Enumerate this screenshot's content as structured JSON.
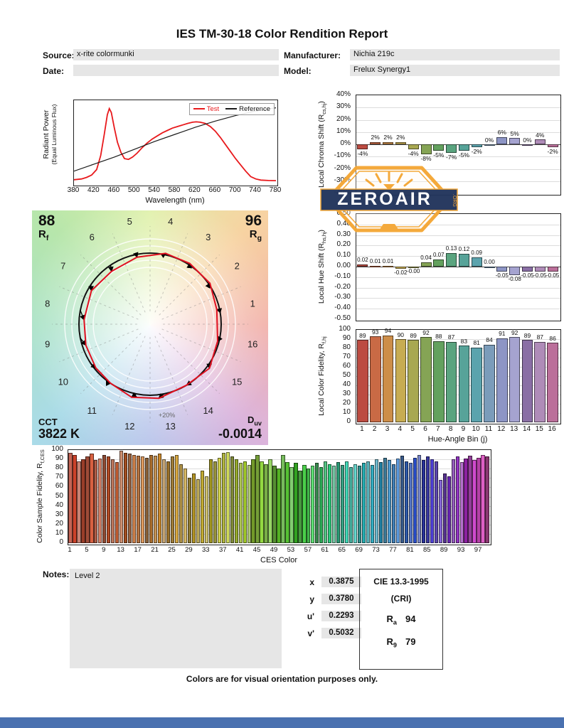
{
  "theme": {
    "accent_orange": "#f4a735",
    "watermark_navy": "#23355c",
    "footer_bar_blue": "#4a71b0",
    "field_bg": "#e6e6e6",
    "test_red": "#e8191c",
    "reference_black": "#1a1a1a"
  },
  "report": {
    "title": "IES TM-30-18 Color Rendition Report",
    "fields": {
      "source_label": "Source:",
      "source_value": "x-rite colormunki",
      "manufacturer_label": "Manufacturer:",
      "manufacturer_value": "Nichia 219c",
      "date_label": "Date:",
      "date_value": "",
      "model_label": "Model:",
      "model_value": "Frelux Synergy1"
    },
    "footer": "Colors are for visual orientation purposes only.",
    "watermark": {
      "name": "ZEROAIR",
      "suffix": ".ORG"
    }
  },
  "summary": {
    "rf_value": "88",
    "rf_main": "R",
    "rf_sub": "f",
    "rg_value": "96",
    "rg_main": "R",
    "rg_sub": "g",
    "cct_label": "CCT",
    "cct_value": "3822 K",
    "duv_main": "D",
    "duv_sub": "uv",
    "duv_value": "-0.0014"
  },
  "cvg": {
    "ring_label": "+20%"
  },
  "notes": {
    "label": "Notes:",
    "content": "Level 2"
  },
  "chromaticity": {
    "rows": [
      {
        "label": "x",
        "value": "0.3875"
      },
      {
        "label": "y",
        "value": "0.3780"
      },
      {
        "label": "u'",
        "value": "0.2293"
      },
      {
        "label": "v'",
        "value": "0.5032"
      }
    ]
  },
  "cri_box": {
    "title": "CIE 13.3-1995",
    "subtitle": "(CRI)",
    "rows": [
      {
        "main": "R",
        "sub": "a",
        "value": "94"
      },
      {
        "main": "R",
        "sub": "9",
        "value": "79"
      }
    ]
  },
  "hue_bin_colors": [
    "#bc4b41",
    "#c96a45",
    "#cd8e49",
    "#c7ac52",
    "#a8a851",
    "#85a455",
    "#63a15e",
    "#5aa47f",
    "#57a399",
    "#5ba3ad",
    "#7b9cba",
    "#8d95c5",
    "#a5a3d0",
    "#8a6fa5",
    "#af8cb8",
    "#bb6f9a"
  ],
  "chart_data": [
    {
      "id": "spd",
      "type": "line",
      "xlabel": "Wavelength (nm)",
      "ylabel_line1": "Radiant Power",
      "ylabel_line2": "(Equal Luminous Flux)",
      "xlim": [
        380,
        780
      ],
      "xticks": [
        "380",
        "420",
        "460",
        "500",
        "540",
        "580",
        "620",
        "660",
        "700",
        "740",
        "780"
      ],
      "legend": [
        {
          "label": "Test",
          "color": "#e8191c"
        },
        {
          "label": "Reference",
          "color": "#1a1a1a"
        }
      ],
      "series": [
        {
          "name": "Test",
          "color": "#e8191c",
          "x": [
            380,
            395,
            405,
            415,
            425,
            433,
            440,
            446,
            450,
            454,
            460,
            466,
            473,
            480,
            488,
            496,
            505,
            515,
            525,
            535,
            545,
            555,
            565,
            575,
            585,
            595,
            605,
            615,
            622,
            630,
            640,
            650,
            660,
            670,
            680,
            690,
            700,
            710,
            720,
            730,
            740,
            750,
            765,
            780
          ],
          "y": [
            0.02,
            0.03,
            0.05,
            0.08,
            0.15,
            0.33,
            0.6,
            0.85,
            0.93,
            0.88,
            0.68,
            0.5,
            0.37,
            0.29,
            0.28,
            0.31,
            0.36,
            0.43,
            0.49,
            0.54,
            0.58,
            0.62,
            0.65,
            0.68,
            0.7,
            0.72,
            0.74,
            0.755,
            0.76,
            0.755,
            0.74,
            0.7,
            0.64,
            0.56,
            0.47,
            0.38,
            0.29,
            0.21,
            0.13,
            0.06,
            0.03,
            0.015,
            0.01,
            0.008
          ]
        },
        {
          "name": "Reference",
          "color": "#1a1a1a",
          "x": [
            380,
            420,
            460,
            500,
            540,
            580,
            620,
            660,
            700,
            740,
            780
          ],
          "y": [
            0.13,
            0.22,
            0.31,
            0.41,
            0.51,
            0.6,
            0.69,
            0.77,
            0.84,
            0.9,
            0.94
          ]
        }
      ]
    },
    {
      "id": "chroma_shift",
      "type": "bar",
      "ylabel_prefix": "Local Chroma Shift (R",
      "ylabel_sub": "cs,hj",
      "ylabel_suffix": ")",
      "ylim": [
        -40,
        40
      ],
      "yticks": [
        "40%",
        "30%",
        "20%",
        "10%",
        "0%",
        "-10%",
        "-20%",
        "-30%",
        "-40%"
      ],
      "categories": [
        "1",
        "2",
        "3",
        "4",
        "5",
        "6",
        "7",
        "8",
        "9",
        "10",
        "11",
        "12",
        "13",
        "14",
        "15",
        "16"
      ],
      "values": [
        -4,
        2,
        2,
        2,
        -4,
        -8,
        -5,
        -7,
        -5,
        -2,
        0,
        6,
        5,
        0,
        4,
        -2
      ],
      "labels": [
        "-4%",
        "2%",
        "2%",
        "2%",
        "-4%",
        "-8%",
        "-5%",
        "-7%",
        "-5%",
        "-2%",
        "0%",
        "6%",
        "5%",
        "0%",
        "4%",
        "-2%"
      ]
    },
    {
      "id": "hue_shift",
      "type": "bar",
      "ylabel_prefix": "Local Hue Shift (R",
      "ylabel_sub": "hs,hj",
      "ylabel_suffix": ")",
      "ylim": [
        -0.5,
        0.5
      ],
      "yticks": [
        "0.50",
        "0.40",
        "0.30",
        "0.20",
        "0.10",
        "0.00",
        "-0.10",
        "-0.20",
        "-0.30",
        "-0.40",
        "-0.50"
      ],
      "categories": [
        "1",
        "2",
        "3",
        "4",
        "5",
        "6",
        "7",
        "8",
        "9",
        "10",
        "11",
        "12",
        "13",
        "14",
        "15",
        "16"
      ],
      "values": [
        0.02,
        0.01,
        0.01,
        -0.02,
        -0.005,
        0.04,
        0.07,
        0.13,
        0.12,
        0.09,
        0.0,
        -0.05,
        -0.08,
        -0.05,
        -0.05,
        -0.05
      ],
      "labels": [
        "0.02",
        "0.01",
        "0.01",
        "-0.02",
        "-0.00",
        "0.04",
        "0.07",
        "0.13",
        "0.12",
        "0.09",
        "0.00",
        "-0.05",
        "-0.08",
        "-0.05",
        "-0.05",
        "-0.05"
      ]
    },
    {
      "id": "local_fidelity",
      "type": "bar",
      "ylabel_prefix": "Local Color Fidelity, R",
      "ylabel_sub": "f,hj",
      "ylabel_suffix": "",
      "xlabel": "Hue-Angle Bin (j)",
      "ylim": [
        0,
        100
      ],
      "yticks": [
        "100",
        "90",
        "80",
        "70",
        "60",
        "50",
        "40",
        "30",
        "20",
        "10",
        "0"
      ],
      "categories": [
        "1",
        "2",
        "3",
        "4",
        "5",
        "6",
        "7",
        "8",
        "9",
        "10",
        "11",
        "12",
        "13",
        "14",
        "15",
        "16"
      ],
      "values": [
        89,
        93,
        94,
        90,
        89,
        92,
        88,
        87,
        83,
        81,
        84,
        91,
        92,
        89,
        87,
        86
      ]
    },
    {
      "id": "ces_fidelity",
      "type": "bar",
      "ylabel_prefix": "Color Sample Fidelity, R",
      "ylabel_sub": "f,CES",
      "ylabel_suffix": "",
      "xlabel": "CES Color",
      "ylim": [
        0,
        100
      ],
      "yticks": [
        "100",
        "90",
        "80",
        "70",
        "60",
        "50",
        "40",
        "30",
        "20",
        "10",
        "0"
      ],
      "xticks": [
        "1",
        "5",
        "9",
        "13",
        "17",
        "21",
        "25",
        "29",
        "33",
        "37",
        "41",
        "45",
        "49",
        "53",
        "57",
        "61",
        "65",
        "69",
        "73",
        "77",
        "81",
        "85",
        "89",
        "93",
        "97"
      ],
      "values": [
        97,
        95,
        88,
        90,
        93,
        96,
        89,
        91,
        95,
        93,
        90,
        87,
        99,
        97,
        96,
        95,
        94,
        93,
        92,
        95,
        94,
        96,
        90,
        88,
        93,
        95,
        85,
        80,
        70,
        75,
        69,
        78,
        72,
        90,
        88,
        92,
        97,
        98,
        93,
        90,
        86,
        88,
        84,
        90,
        95,
        88,
        85,
        90,
        83,
        80,
        95,
        87,
        82,
        86,
        78,
        84,
        80,
        83,
        86,
        82,
        88,
        85,
        83,
        87,
        84,
        88,
        82,
        85,
        83,
        86,
        88,
        84,
        90,
        87,
        92,
        89,
        85,
        91,
        94,
        88,
        86,
        92,
        95,
        89,
        93,
        90,
        88,
        68,
        75,
        72,
        90,
        93,
        87,
        91,
        94,
        89,
        92,
        95,
        93
      ]
    }
  ]
}
